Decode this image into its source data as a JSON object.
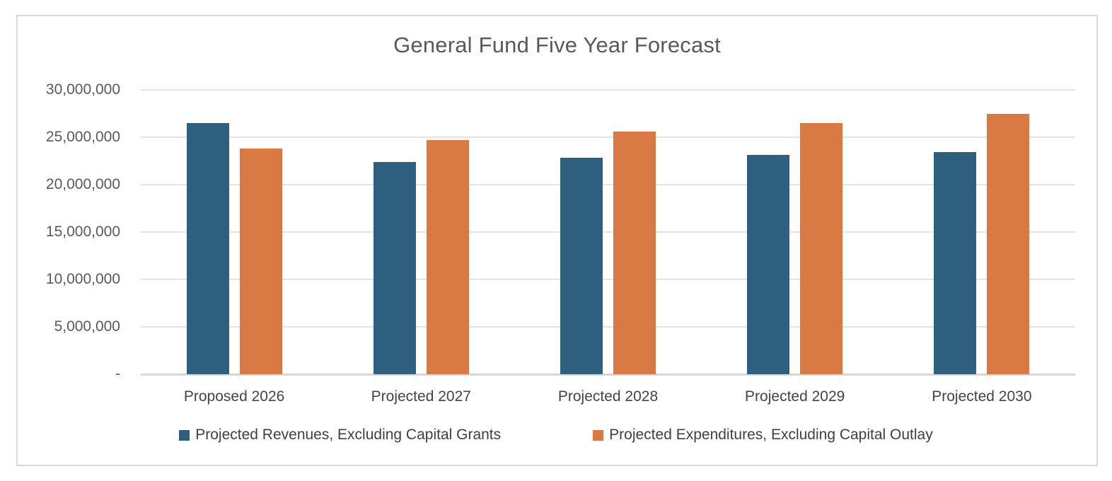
{
  "chart_data": {
    "type": "bar",
    "title": "General Fund Five Year Forecast",
    "xlabel": "",
    "ylabel": "",
    "categories": [
      "Proposed 2026",
      "Projected 2027",
      "Projected 2028",
      "Projected 2029",
      "Projected 2030"
    ],
    "series": [
      {
        "name": "Projected Revenues, Excluding Capital Grants",
        "color": "#2E5F7E",
        "values": [
          26500000,
          22400000,
          22800000,
          23100000,
          23400000
        ]
      },
      {
        "name": "Projected Expenditures, Excluding Capital Outlay",
        "color": "#D97A45",
        "values": [
          23800000,
          24700000,
          25600000,
          26500000,
          27500000
        ]
      }
    ],
    "ylim": [
      0,
      30000000
    ],
    "y_tick_step": 5000000,
    "y_ticks": [
      {
        "value": 0,
        "label": "-"
      },
      {
        "value": 5000000,
        "label": "5,000,000"
      },
      {
        "value": 10000000,
        "label": "10,000,000"
      },
      {
        "value": 15000000,
        "label": "15,000,000"
      },
      {
        "value": 20000000,
        "label": "20,000,000"
      },
      {
        "value": 25000000,
        "label": "25,000,000"
      },
      {
        "value": 30000000,
        "label": "30,000,000"
      }
    ],
    "grid": true,
    "legend_position": "bottom",
    "style": {
      "title_color": "#595959",
      "axis_label_color": "#595959",
      "category_label_color": "#444444",
      "legend_text_color": "#3f3f3f",
      "gridline_color": "#e4e4e4",
      "axis_line_color": "#d6d6d6",
      "frame_border_color": "#d9d9d9",
      "background_color": "#ffffff"
    }
  }
}
